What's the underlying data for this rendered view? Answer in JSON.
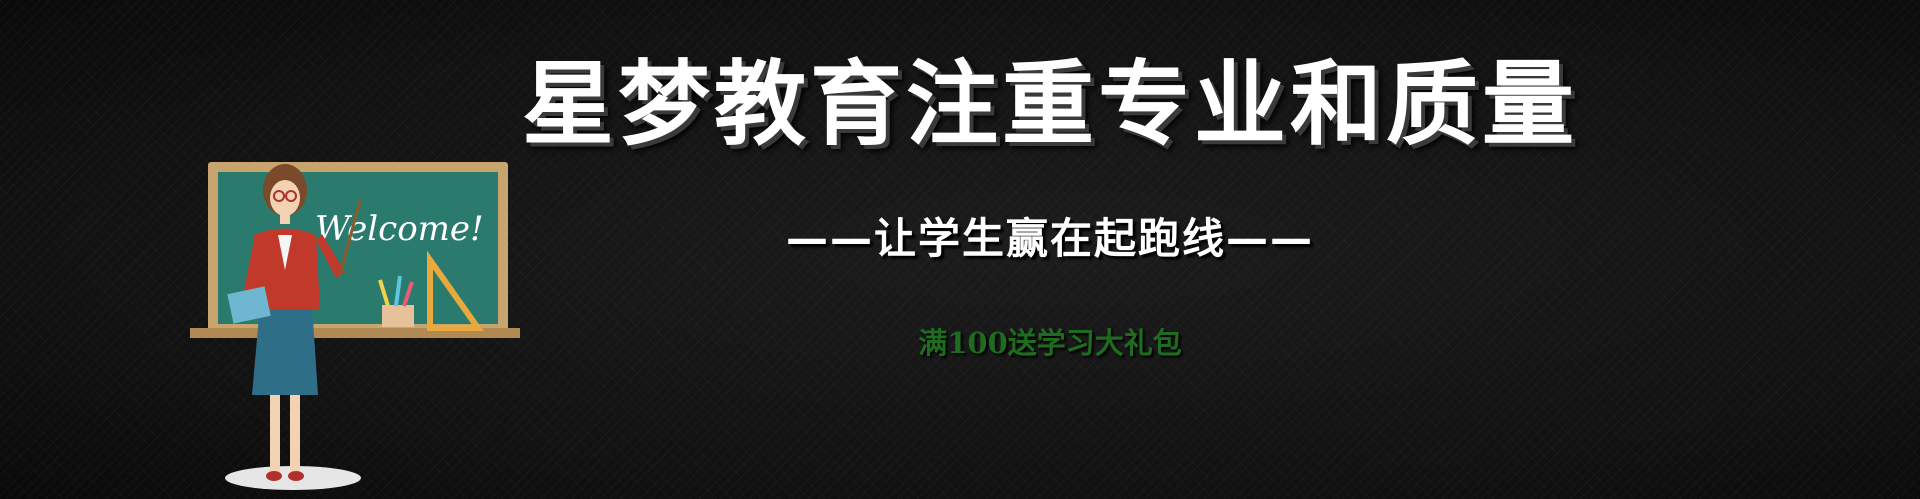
{
  "banner": {
    "headline": "星梦教育注重专业和质量",
    "subheadline": "——让学生赢在起跑线——",
    "promo": "满100送学习大礼包",
    "promo_color": "#1f6b1f"
  },
  "illustration": {
    "chalkboard_text": "Welcome!",
    "colors": {
      "board": "#2b7a6e",
      "frame": "#c8a46e",
      "jacket": "#c0392b",
      "skirt": "#2e6f87"
    }
  }
}
